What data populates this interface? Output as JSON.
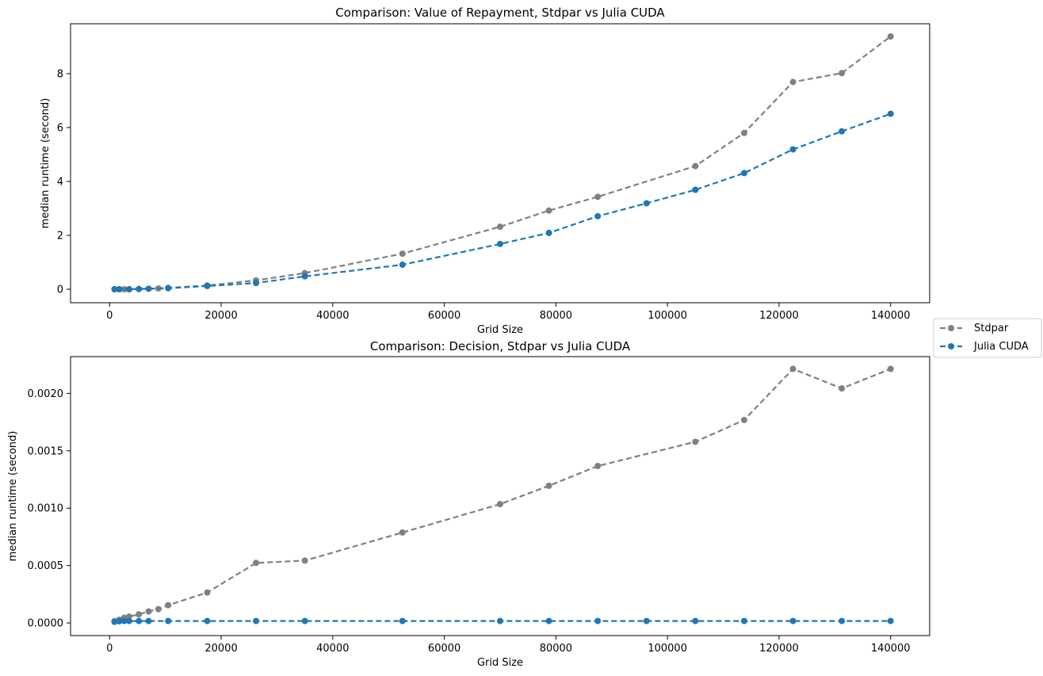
{
  "colors": {
    "stdpar": "#808080",
    "julia_cuda": "#1f77b4"
  },
  "legend": {
    "placement": "right of figure, between plots",
    "entries": [
      "Stdpar",
      "Julia CUDA"
    ]
  },
  "chart_data": [
    {
      "type": "line",
      "title": "Comparison: Value of Repayment, Stdpar vs Julia CUDA",
      "xlabel": "Grid Size",
      "ylabel": "median runtime (second)",
      "xlim": [
        -7000,
        147000
      ],
      "ylim": [
        -0.5,
        9.85
      ],
      "xticks": [
        0,
        20000,
        40000,
        60000,
        80000,
        100000,
        120000,
        140000
      ],
      "xtick_labels": [
        "0",
        "20000",
        "40000",
        "60000",
        "80000",
        "100000",
        "120000",
        "140000"
      ],
      "yticks": [
        0,
        2,
        4,
        6,
        8
      ],
      "ytick_labels": [
        "0",
        "2",
        "4",
        "6",
        "8"
      ],
      "series": [
        {
          "name": "Stdpar",
          "color": "#808080",
          "x": [
            875,
            1750,
            2625,
            3500,
            5250,
            7000,
            8750,
            10500,
            17500,
            26250,
            35000,
            52500,
            70000,
            78750,
            87500,
            105000,
            113750,
            122500,
            131250,
            140000
          ],
          "y": [
            0.0,
            0.0,
            0.0,
            0.0,
            0.01,
            0.02,
            0.03,
            0.05,
            0.14,
            0.33,
            0.6,
            1.32,
            2.32,
            2.92,
            3.43,
            4.57,
            5.8,
            7.69,
            8.02,
            9.38
          ]
        },
        {
          "name": "Julia CUDA",
          "color": "#1f77b4",
          "x": [
            875,
            1750,
            3500,
            5250,
            7000,
            10500,
            17500,
            26250,
            35000,
            52500,
            70000,
            78750,
            87500,
            96250,
            105000,
            113750,
            122500,
            131250,
            140000
          ],
          "y": [
            0.0,
            0.0,
            0.0,
            0.01,
            0.02,
            0.04,
            0.12,
            0.23,
            0.48,
            0.91,
            1.68,
            2.09,
            2.71,
            3.19,
            3.69,
            4.31,
            5.19,
            5.86,
            6.51
          ]
        }
      ]
    },
    {
      "type": "line",
      "title": "Comparison: Decision, Stdpar vs Julia CUDA",
      "xlabel": "Grid Size",
      "ylabel": "median runtime (second)",
      "xlim": [
        -7000,
        147000
      ],
      "ylim": [
        -0.00011,
        0.00232
      ],
      "xticks": [
        0,
        20000,
        40000,
        60000,
        80000,
        100000,
        120000,
        140000
      ],
      "xtick_labels": [
        "0",
        "20000",
        "40000",
        "60000",
        "80000",
        "100000",
        "120000",
        "140000"
      ],
      "yticks": [
        0,
        0.0005,
        0.001,
        0.0015,
        0.002
      ],
      "ytick_labels": [
        "0.0000",
        "0.0005",
        "0.0010",
        "0.0015",
        "0.0020"
      ],
      "series": [
        {
          "name": "Stdpar",
          "color": "#808080",
          "x": [
            875,
            1750,
            2625,
            3500,
            5250,
            7000,
            8750,
            10500,
            17500,
            26250,
            35000,
            52500,
            70000,
            78750,
            87500,
            105000,
            113750,
            122500,
            131250,
            140000
          ],
          "y": [
            1.5e-05,
            2.8e-05,
            4.5e-05,
            5.5e-05,
            7.5e-05,
            0.0001,
            0.00012,
            0.000155,
            0.000265,
            0.000523,
            0.000543,
            0.000788,
            0.001035,
            0.001195,
            0.001367,
            0.001578,
            0.001768,
            0.002213,
            0.002043,
            0.002213
          ]
        },
        {
          "name": "Julia CUDA",
          "color": "#1f77b4",
          "x": [
            875,
            1750,
            2625,
            3500,
            5250,
            7000,
            10500,
            17500,
            26250,
            35000,
            52500,
            70000,
            78750,
            87500,
            96250,
            105000,
            113750,
            122500,
            131250,
            140000
          ],
          "y": [
            1e-05,
            1.5e-05,
            1.7e-05,
            1.7e-05,
            1.7e-05,
            1.7e-05,
            1.7e-05,
            1.7e-05,
            1.7e-05,
            1.7e-05,
            1.7e-05,
            1.7e-05,
            1.7e-05,
            1.7e-05,
            1.7e-05,
            1.7e-05,
            1.7e-05,
            1.7e-05,
            1.7e-05,
            1.7e-05
          ]
        }
      ]
    }
  ]
}
